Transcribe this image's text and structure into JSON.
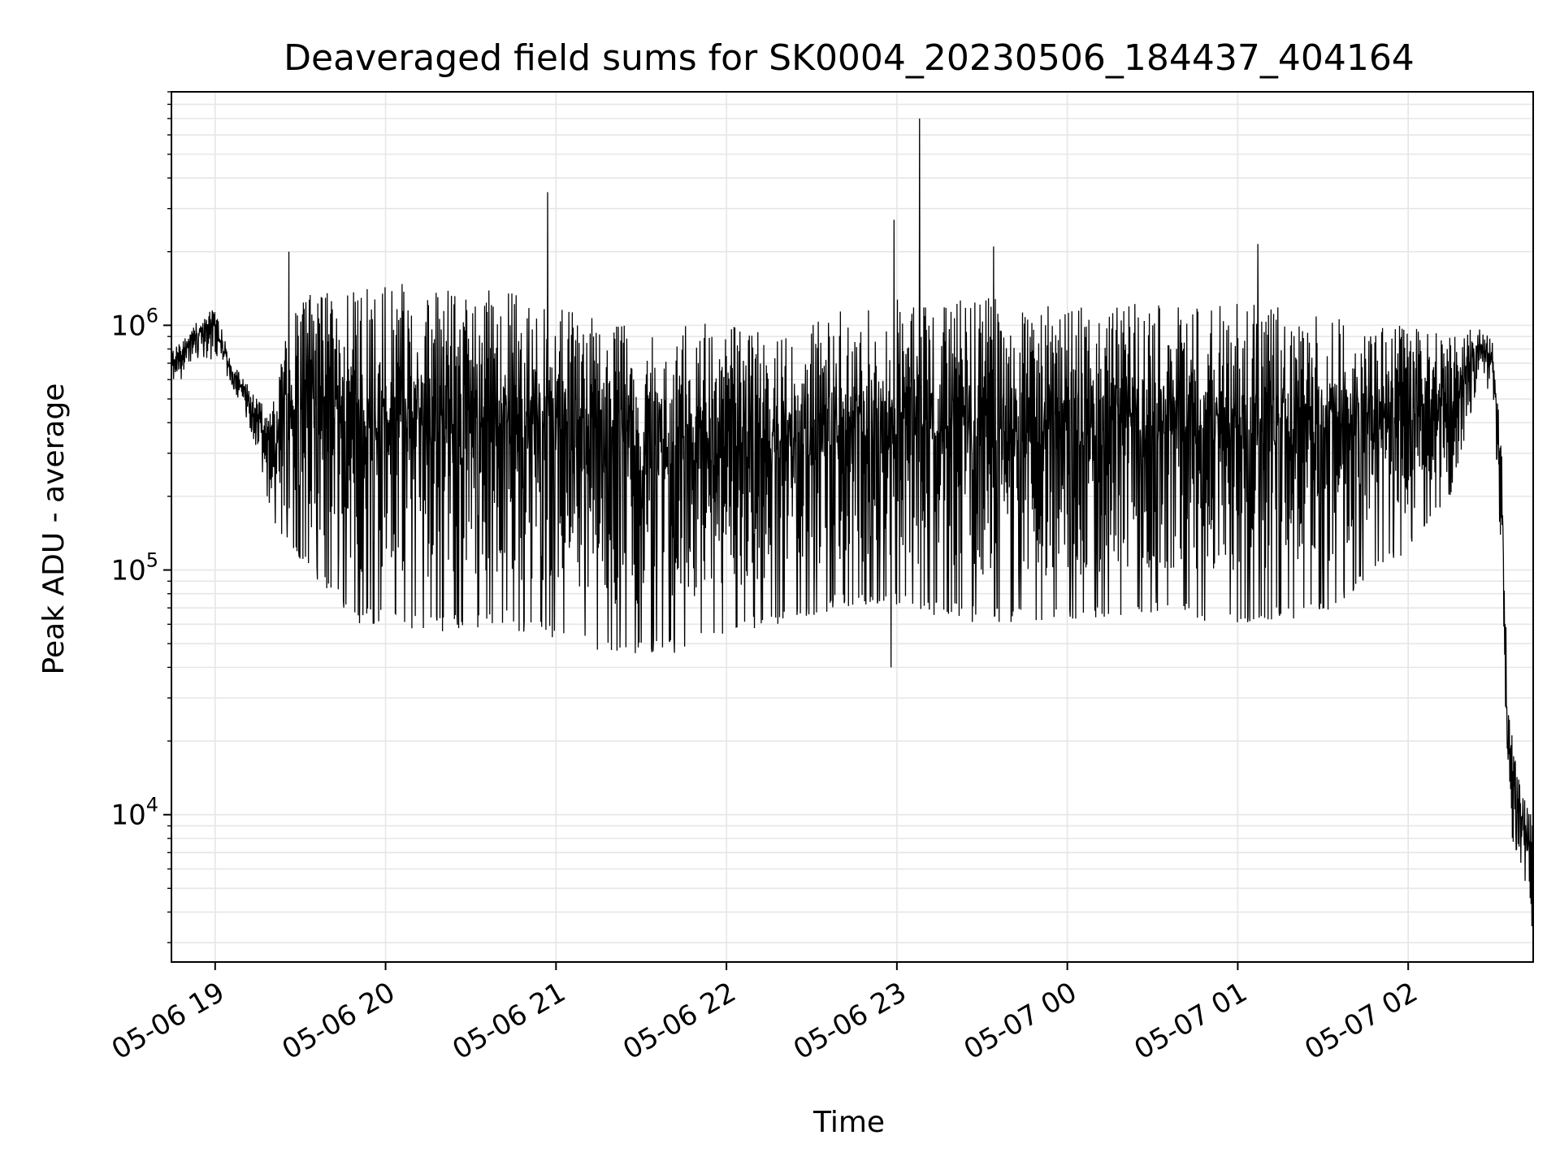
{
  "chart_data": {
    "type": "line",
    "title": "Deaveraged field sums for SK0004_20230506_184437_404164",
    "xlabel": "Time",
    "ylabel": "Peak ADU - average",
    "yscale": "log",
    "ylim": [
      2500,
      9000000
    ],
    "xlim": [
      "2023-05-06 18:44:37",
      "2023-05-07 02:44:00"
    ],
    "x_ticks": [
      {
        "t": "2023-05-06 19:00",
        "label": "05-06 19"
      },
      {
        "t": "2023-05-06 20:00",
        "label": "05-06 20"
      },
      {
        "t": "2023-05-06 21:00",
        "label": "05-06 21"
      },
      {
        "t": "2023-05-06 22:00",
        "label": "05-06 22"
      },
      {
        "t": "2023-05-06 23:00",
        "label": "05-06 23"
      },
      {
        "t": "2023-05-07 00:00",
        "label": "05-07 00"
      },
      {
        "t": "2023-05-07 01:00",
        "label": "05-07 01"
      },
      {
        "t": "2023-05-07 02:00",
        "label": "05-07 02"
      }
    ],
    "y_ticks": [
      {
        "value": 10000,
        "base": "10",
        "exp": "4"
      },
      {
        "value": 100000,
        "base": "10",
        "exp": "5"
      },
      {
        "value": 1000000,
        "base": "10",
        "exp": "6"
      }
    ],
    "grid": true,
    "line_color": "#000000",
    "grid_color": "#e6e6e6",
    "series": [
      {
        "name": "",
        "envelope": [
          {
            "t": "2023-05-06 18:44:37",
            "lo": 520000,
            "hi": 820000
          },
          {
            "t": "2023-05-06 18:50:00",
            "lo": 650000,
            "hi": 900000
          },
          {
            "t": "2023-05-06 18:55:00",
            "lo": 750000,
            "hi": 1100000
          },
          {
            "t": "2023-05-06 19:00:00",
            "lo": 700000,
            "hi": 1200000
          },
          {
            "t": "2023-05-06 19:05:00",
            "lo": 600000,
            "hi": 750000
          },
          {
            "t": "2023-05-06 19:10:00",
            "lo": 450000,
            "hi": 600000
          },
          {
            "t": "2023-05-06 19:15:00",
            "lo": 300000,
            "hi": 520000
          },
          {
            "t": "2023-05-06 19:20:00",
            "lo": 160000,
            "hi": 450000
          },
          {
            "t": "2023-05-06 19:25:00",
            "lo": 130000,
            "hi": 1000000
          },
          {
            "t": "2023-05-06 19:30:00",
            "lo": 110000,
            "hi": 1400000
          },
          {
            "t": "2023-05-06 19:40:00",
            "lo": 80000,
            "hi": 1400000
          },
          {
            "t": "2023-05-06 19:50:00",
            "lo": 60000,
            "hi": 1450000
          },
          {
            "t": "2023-05-06 20:00:00",
            "lo": 60000,
            "hi": 1500000
          },
          {
            "t": "2023-05-06 20:20:00",
            "lo": 55000,
            "hi": 1450000
          },
          {
            "t": "2023-05-06 20:40:00",
            "lo": 60000,
            "hi": 1400000
          },
          {
            "t": "2023-05-06 21:00:00",
            "lo": 50000,
            "hi": 1200000
          },
          {
            "t": "2023-05-06 21:20:00",
            "lo": 45000,
            "hi": 1050000
          },
          {
            "t": "2023-05-06 21:40:00",
            "lo": 45000,
            "hi": 1050000
          },
          {
            "t": "2023-05-06 22:00:00",
            "lo": 55000,
            "hi": 1000000
          },
          {
            "t": "2023-05-06 22:20:00",
            "lo": 60000,
            "hi": 900000
          },
          {
            "t": "2023-05-06 22:40:00",
            "lo": 70000,
            "hi": 1150000
          },
          {
            "t": "2023-05-06 23:00:00",
            "lo": 70000,
            "hi": 1300000
          },
          {
            "t": "2023-05-06 23:30:00",
            "lo": 60000,
            "hi": 1300000
          },
          {
            "t": "2023-05-07 00:00:00",
            "lo": 60000,
            "hi": 1200000
          },
          {
            "t": "2023-05-07 00:30:00",
            "lo": 65000,
            "hi": 1250000
          },
          {
            "t": "2023-05-07 01:00:00",
            "lo": 60000,
            "hi": 1250000
          },
          {
            "t": "2023-05-07 01:30:00",
            "lo": 65000,
            "hi": 1150000
          },
          {
            "t": "2023-05-07 02:00:00",
            "lo": 120000,
            "hi": 1000000
          },
          {
            "t": "2023-05-07 02:15:00",
            "lo": 200000,
            "hi": 900000
          },
          {
            "t": "2023-05-07 02:25:00",
            "lo": 600000,
            "hi": 1000000
          },
          {
            "t": "2023-05-07 02:30:00",
            "lo": 500000,
            "hi": 850000
          },
          {
            "t": "2023-05-07 02:33:00",
            "lo": 100000,
            "hi": 300000
          },
          {
            "t": "2023-05-07 02:35:00",
            "lo": 9000,
            "hi": 30000
          },
          {
            "t": "2023-05-07 02:40:00",
            "lo": 6000,
            "hi": 12000
          },
          {
            "t": "2023-05-07 02:44:00",
            "lo": 4000,
            "hi": 10000
          }
        ],
        "spikes": [
          {
            "t": "2023-05-06 19:26:00",
            "value": 2000000
          },
          {
            "t": "2023-05-06 20:57:00",
            "value": 3500000
          },
          {
            "t": "2023-05-06 22:59:00",
            "value": 2700000
          },
          {
            "t": "2023-05-06 22:58:00",
            "value": 40000
          },
          {
            "t": "2023-05-06 23:08:00",
            "value": 7000000
          },
          {
            "t": "2023-05-06 23:34:00",
            "value": 2100000
          },
          {
            "t": "2023-05-07 01:07:00",
            "value": 2150000
          },
          {
            "t": "2023-05-07 02:43:30",
            "value": 3500
          }
        ]
      }
    ]
  }
}
